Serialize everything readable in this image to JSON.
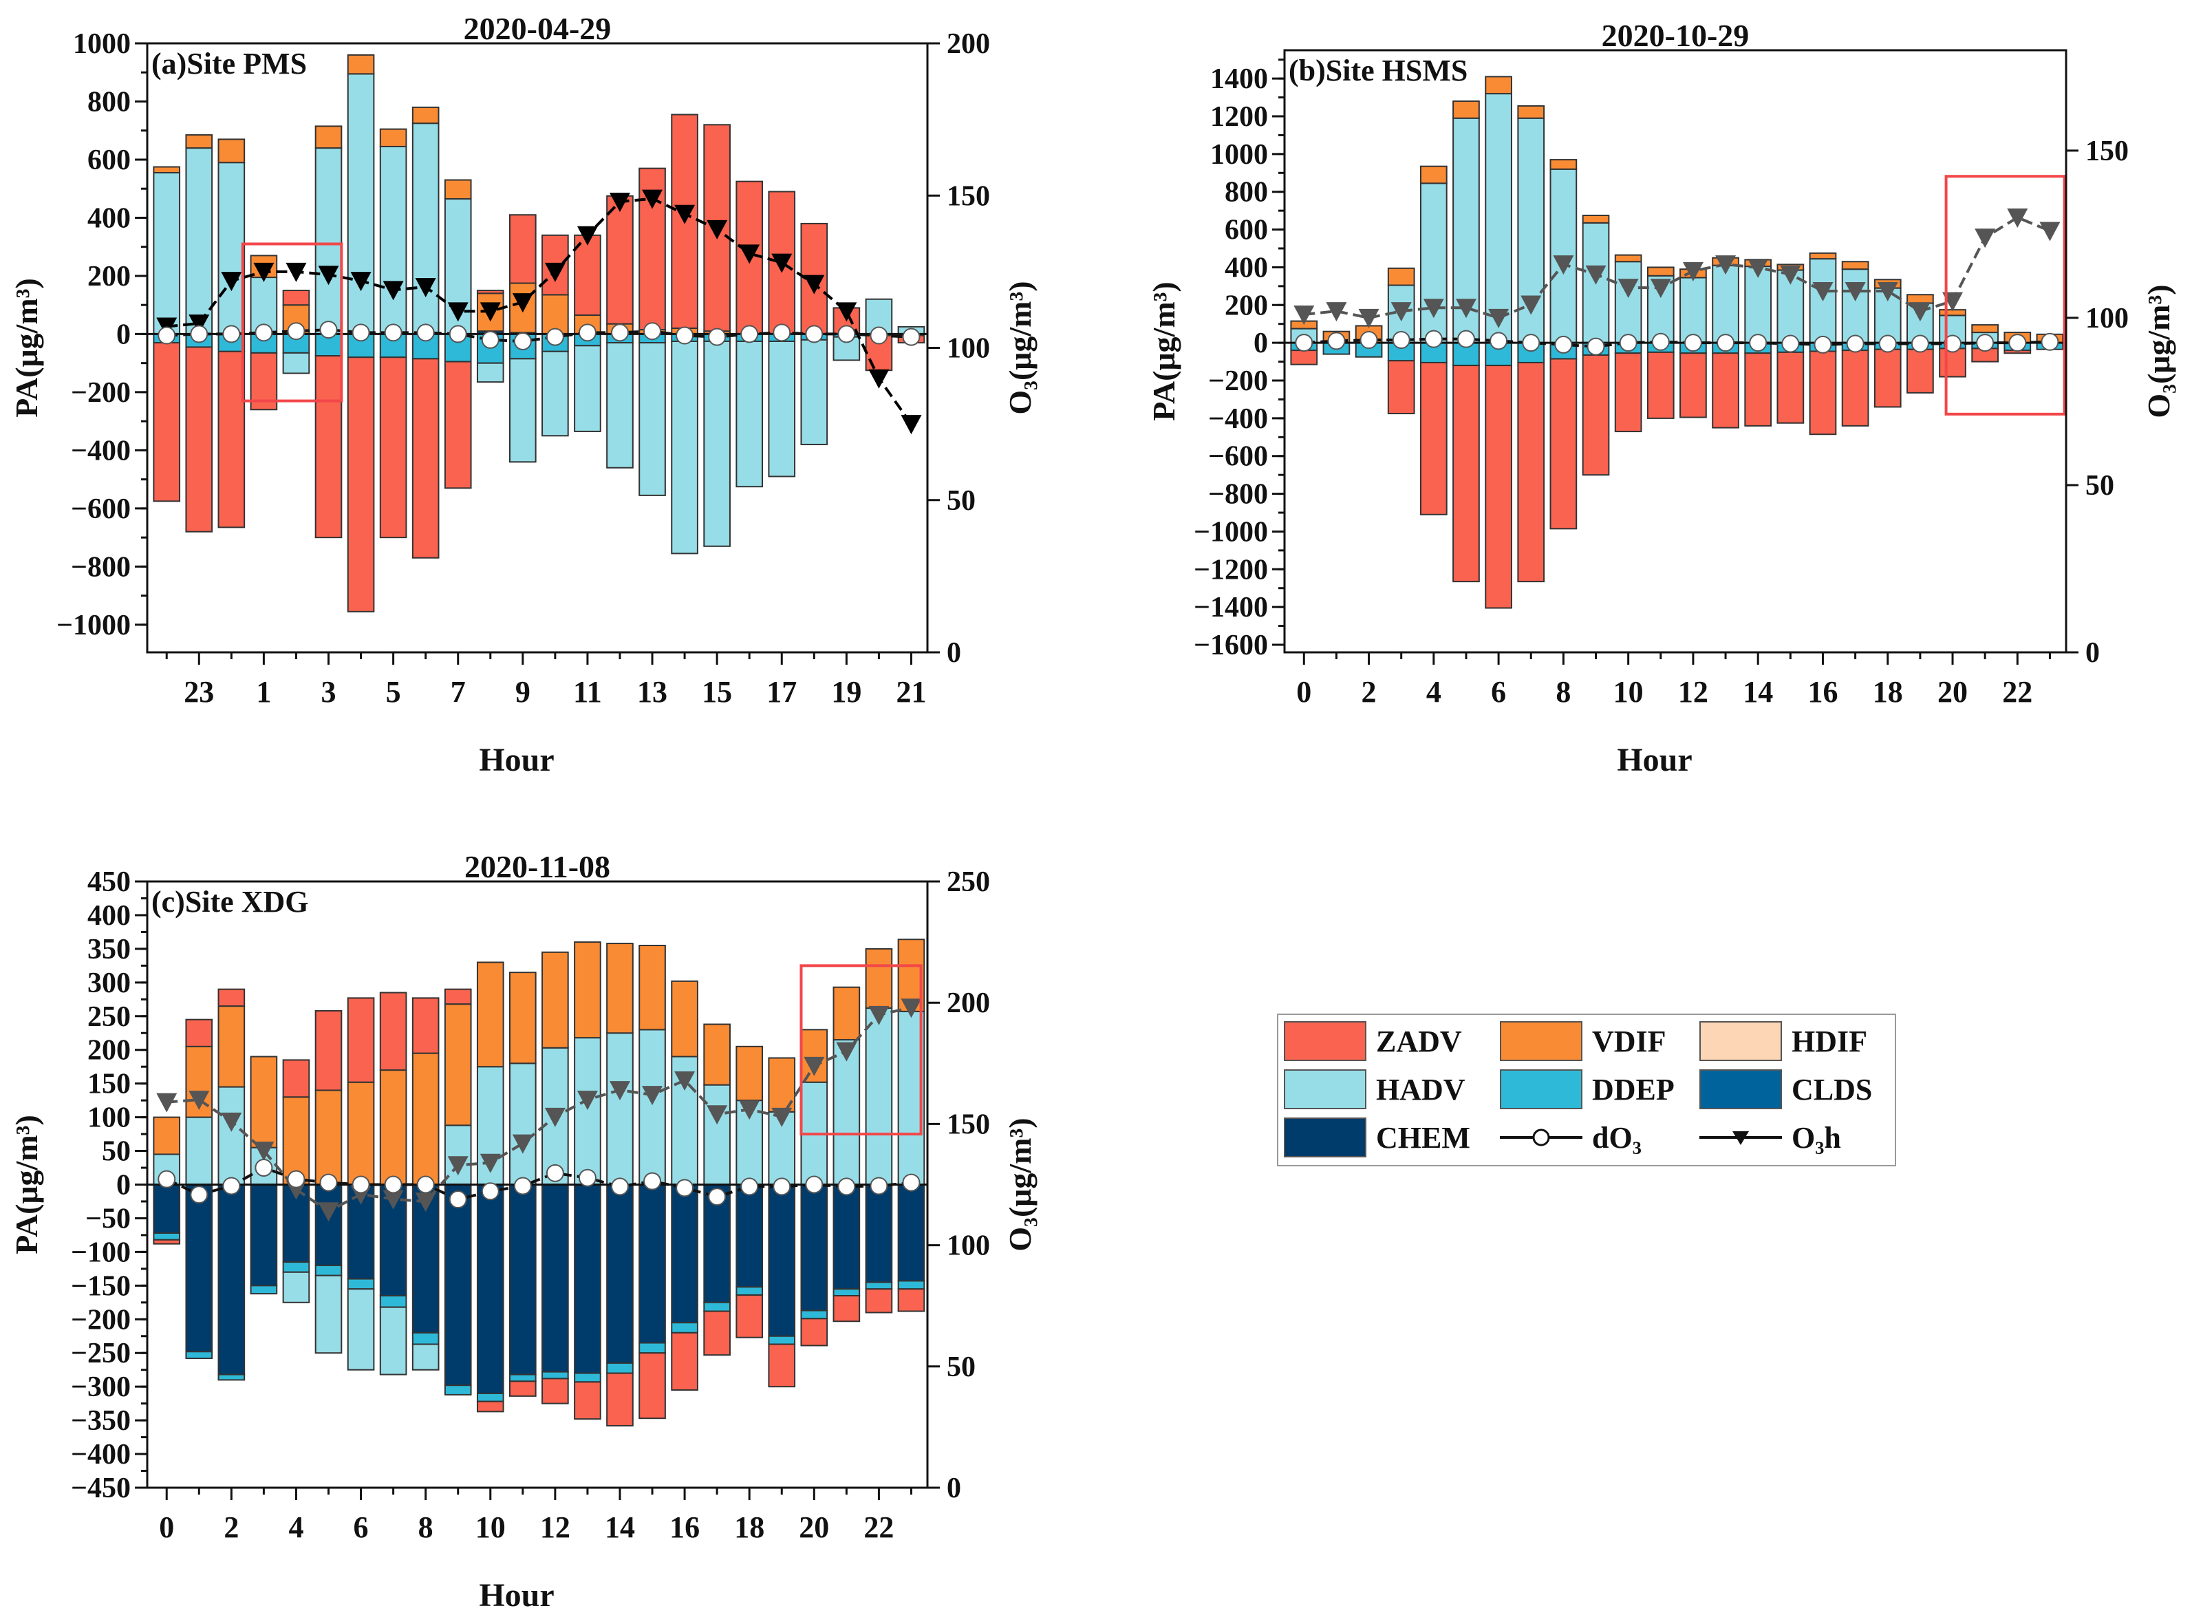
{
  "colors": {
    "ZADV": "#F9634F",
    "VDIF": "#F98B34",
    "HDIF": "#FDD6B6",
    "HADV": "#97DDE7",
    "DDEP": "#2EB9D8",
    "CLDS": "#00639B",
    "CHEM": "#003C6B",
    "highlight": "#F2474A"
  },
  "legend": {
    "items": [
      {
        "key": "ZADV",
        "label": "ZADV",
        "kind": "box"
      },
      {
        "key": "VDIF",
        "label": "VDIF",
        "kind": "box"
      },
      {
        "key": "HDIF",
        "label": "HDIF",
        "kind": "box"
      },
      {
        "key": "HADV",
        "label": "HADV",
        "kind": "box"
      },
      {
        "key": "DDEP",
        "label": "DDEP",
        "kind": "box"
      },
      {
        "key": "CLDS",
        "label": "CLDS",
        "kind": "box"
      },
      {
        "key": "CHEM",
        "label": "CHEM",
        "kind": "box"
      },
      {
        "key": "dO3",
        "label": "dO₃",
        "kind": "circle-line"
      },
      {
        "key": "O3h",
        "label": "O₃h",
        "kind": "triangle-line"
      }
    ]
  },
  "chart_data": [
    {
      "type": "bar",
      "title": "2020-04-29",
      "panel_label": "(a)Site PMS",
      "xlabel": "Hour",
      "ylabel": "PA(μg/m³)",
      "ylabel_right": "O₃(μg/m³)",
      "hours": [
        22,
        23,
        0,
        1,
        2,
        3,
        4,
        5,
        6,
        7,
        8,
        9,
        10,
        11,
        12,
        13,
        14,
        15,
        16,
        17,
        18,
        19,
        20,
        21
      ],
      "xtick_labels_every": 2,
      "xtick_label_offset": 1,
      "ylim": [
        -1095,
        1000
      ],
      "yticks": [
        -1000,
        -800,
        -600,
        -400,
        -200,
        0,
        200,
        400,
        600,
        800,
        1000
      ],
      "yminor": 100,
      "ylim_right": [
        0,
        200
      ],
      "yticks_right": [
        0,
        50,
        100,
        150,
        200
      ],
      "o3h_color": "#000000",
      "series": {
        "CHEM": [
          0,
          0,
          0,
          0,
          0,
          0,
          0,
          0,
          0,
          0,
          10,
          5,
          0,
          0,
          0,
          0,
          0,
          0,
          0,
          0,
          0,
          0,
          0,
          0
        ],
        "DDEP": [
          -30,
          -45,
          -60,
          -65,
          -65,
          -75,
          -80,
          -80,
          -85,
          -95,
          -100,
          -85,
          -60,
          -40,
          -30,
          -30,
          -25,
          -25,
          -25,
          -25,
          -20,
          -10,
          -5,
          -5
        ],
        "HADV": [
          555,
          640,
          590,
          195,
          -70,
          640,
          895,
          645,
          725,
          465,
          -65,
          -355,
          -290,
          -295,
          -430,
          -525,
          -730,
          -705,
          -500,
          -465,
          -360,
          -80,
          120,
          25
        ],
        "VDIF": [
          20,
          45,
          80,
          75,
          100,
          75,
          65,
          60,
          55,
          65,
          130,
          170,
          135,
          65,
          35,
          15,
          20,
          10,
          0,
          0,
          0,
          0,
          0,
          0
        ],
        "ZADV": [
          -545,
          -635,
          -605,
          -195,
          50,
          -625,
          -875,
          -620,
          -685,
          -435,
          10,
          235,
          205,
          275,
          440,
          555,
          735,
          710,
          525,
          490,
          380,
          90,
          -120,
          -25
        ]
      },
      "dO3": [
        -5,
        0,
        0,
        5,
        10,
        15,
        5,
        5,
        5,
        0,
        -20,
        -25,
        -10,
        5,
        5,
        10,
        -5,
        -10,
        0,
        5,
        0,
        0,
        -5,
        -10
      ],
      "O3h": [
        107,
        108,
        122,
        125,
        125,
        124,
        122,
        119,
        120,
        112,
        112,
        115,
        125,
        137,
        148,
        149,
        144,
        139,
        131,
        128,
        121,
        112,
        90,
        75
      ],
      "highlight": {
        "index_range": [
          2.35,
          5.4
        ],
        "pa_range": [
          -230,
          310
        ]
      }
    },
    {
      "type": "bar",
      "title": "2020-10-29",
      "panel_label": "(b)Site HSMS",
      "xlabel": "Hour",
      "ylabel": "PA(μg/m³)",
      "ylabel_right": "O₃(μg/m³)",
      "hours": [
        0,
        1,
        2,
        3,
        4,
        5,
        6,
        7,
        8,
        9,
        10,
        11,
        12,
        13,
        14,
        15,
        16,
        17,
        18,
        19,
        20,
        21,
        22,
        23
      ],
      "xtick_labels_every": 2,
      "xtick_label_offset": 0,
      "ylim": [
        -1640,
        1550
      ],
      "yticks": [
        -1600,
        -1400,
        -1200,
        -1000,
        -800,
        -600,
        -400,
        -200,
        0,
        200,
        400,
        600,
        800,
        1000,
        1200,
        1400
      ],
      "yminor": 100,
      "ylim_right": [
        0,
        180
      ],
      "yticks_right": [
        0,
        50,
        100,
        150
      ],
      "o3h_color": "#555555",
      "series": {
        "DDEP": [
          -40,
          -60,
          -75,
          -95,
          -105,
          -120,
          -120,
          -105,
          -85,
          -65,
          -55,
          -50,
          -55,
          -55,
          -55,
          -50,
          -45,
          -40,
          -35,
          -35,
          -30,
          -30,
          -40,
          -35
        ],
        "HADV": [
          75,
          0,
          0,
          305,
          845,
          1190,
          1320,
          1190,
          920,
          635,
          430,
          355,
          345,
          410,
          405,
          385,
          445,
          390,
          290,
          210,
          145,
          55,
          0,
          0
        ],
        "VDIF": [
          40,
          60,
          90,
          90,
          90,
          90,
          90,
          65,
          50,
          40,
          35,
          45,
          45,
          40,
          35,
          30,
          30,
          40,
          45,
          45,
          30,
          40,
          55,
          45
        ],
        "ZADV": [
          -75,
          0,
          0,
          -280,
          -805,
          -1145,
          -1285,
          -1160,
          -900,
          -635,
          -415,
          -350,
          -340,
          -395,
          -385,
          -375,
          -440,
          -400,
          -305,
          -230,
          -150,
          -70,
          -15,
          0
        ]
      },
      "dO3": [
        0,
        10,
        15,
        15,
        20,
        20,
        10,
        0,
        -10,
        -20,
        0,
        5,
        0,
        0,
        0,
        -5,
        -10,
        -5,
        -5,
        -5,
        -5,
        0,
        0,
        5
      ],
      "O3h": [
        101,
        102,
        100,
        102,
        103,
        103,
        100,
        104,
        116,
        113,
        109,
        109,
        114,
        116,
        115,
        113,
        108,
        108,
        108,
        102,
        105,
        124,
        130,
        126
      ],
      "highlight": {
        "index_range": [
          19.8,
          23.45
        ],
        "pa_range": [
          -378,
          882
        ]
      }
    },
    {
      "type": "bar",
      "title": "2020-11-08",
      "panel_label": "(c)Site XDG",
      "xlabel": "Hour",
      "ylabel": "PA(μg/m³)",
      "ylabel_right": "O₃(μg/m³)",
      "hours": [
        0,
        1,
        2,
        3,
        4,
        5,
        6,
        7,
        8,
        9,
        10,
        11,
        12,
        13,
        14,
        15,
        16,
        17,
        18,
        19,
        20,
        21,
        22,
        23
      ],
      "xtick_labels_every": 2,
      "xtick_label_offset": 0,
      "ylim": [
        -450,
        450
      ],
      "yticks": [
        -450,
        -400,
        -350,
        -300,
        -250,
        -200,
        -150,
        -100,
        -50,
        0,
        50,
        100,
        150,
        200,
        250,
        300,
        350,
        400,
        450
      ],
      "yminor": 25,
      "ylim_right": [
        0,
        250
      ],
      "yticks_right": [
        0,
        50,
        100,
        150,
        200,
        250
      ],
      "o3h_color": "#555555",
      "series": {
        "CHEM": [
          -72,
          -248,
          -282,
          -150,
          -115,
          -120,
          -140,
          -165,
          -220,
          -298,
          -310,
          -282,
          -278,
          -280,
          -265,
          -235,
          -205,
          -175,
          -152,
          -225,
          -187,
          -155,
          -145,
          -143
        ],
        "DDEP": [
          -10,
          -10,
          -8,
          -12,
          -15,
          -15,
          -15,
          -17,
          -17,
          -14,
          -12,
          -10,
          -10,
          -13,
          -15,
          -15,
          -15,
          -13,
          -12,
          -12,
          -12,
          -10,
          -10,
          -12
        ],
        "HADV": [
          45,
          100,
          145,
          55,
          -45,
          -115,
          -120,
          -100,
          -38,
          88,
          175,
          180,
          203,
          218,
          225,
          230,
          190,
          148,
          125,
          108,
          152,
          215,
          262,
          257
        ],
        "VDIF": [
          55,
          105,
          120,
          135,
          130,
          140,
          152,
          170,
          195,
          180,
          155,
          135,
          142,
          142,
          133,
          125,
          112,
          90,
          80,
          80,
          78,
          78,
          88,
          107
        ],
        "ZADV": [
          -6,
          40,
          25,
          0,
          55,
          118,
          125,
          115,
          82,
          22,
          -15,
          -22,
          -37,
          -55,
          -78,
          -97,
          -85,
          -65,
          -63,
          -63,
          -40,
          -38,
          -35,
          -33
        ]
      },
      "dO3": [
        8,
        -15,
        -2,
        25,
        8,
        3,
        0,
        0,
        0,
        -22,
        -10,
        -2,
        17,
        10,
        -3,
        5,
        -5,
        -18,
        -3,
        -3,
        0,
        -3,
        -2,
        3
      ],
      "O3h": [
        159,
        160,
        151,
        139,
        123,
        114,
        121,
        119,
        118,
        133,
        134,
        142,
        153,
        160,
        164,
        162,
        168,
        154,
        156,
        153,
        174,
        180,
        195,
        198
      ],
      "highlight": {
        "index_range": [
          19.6,
          23.3
        ],
        "pa_range": [
          75,
          325
        ]
      }
    }
  ]
}
